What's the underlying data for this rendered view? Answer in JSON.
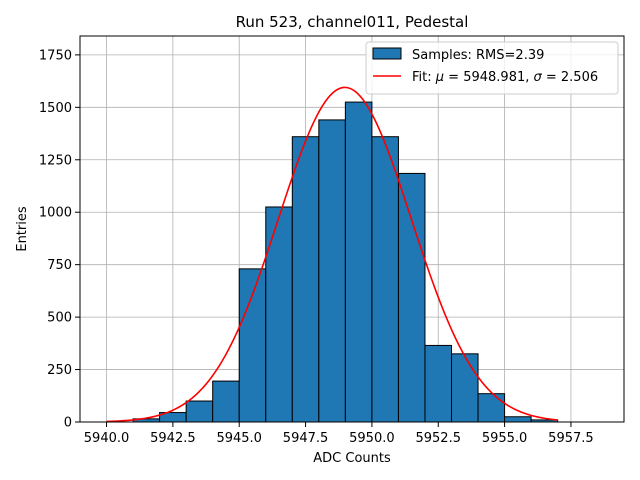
{
  "chart_data": {
    "type": "bar",
    "title": "Run 523, channel011, Pedestal",
    "xlabel": "ADC Counts",
    "ylabel": "Entries",
    "xlim": [
      5939.0,
      5959.5
    ],
    "ylim": [
      0,
      1840
    ],
    "xticks": [
      5940.0,
      5942.5,
      5945.0,
      5947.5,
      5950.0,
      5952.5,
      5955.0,
      5957.5
    ],
    "xtick_labels": [
      "5940.0",
      "5942.5",
      "5945.0",
      "5947.5",
      "5950.0",
      "5952.5",
      "5955.0",
      "5957.5"
    ],
    "yticks": [
      0,
      250,
      500,
      750,
      1000,
      1250,
      1500,
      1750
    ],
    "ytick_labels": [
      "0",
      "250",
      "500",
      "750",
      "1000",
      "1250",
      "1500",
      "1750"
    ],
    "grid": true,
    "legend_position": "top-right",
    "histogram": {
      "name": "Samples: RMS=2.39",
      "color": "#1f77b4",
      "edge_color": "#000000",
      "bin_edges": [
        5941,
        5942,
        5943,
        5944,
        5945,
        5946,
        5947,
        5948,
        5949,
        5950,
        5951,
        5952,
        5953,
        5954,
        5955,
        5956,
        5957
      ],
      "counts": [
        15,
        45,
        100,
        195,
        730,
        1025,
        1360,
        1440,
        1525,
        1360,
        1185,
        365,
        325,
        135,
        25,
        10
      ]
    },
    "fit": {
      "name": "Fit: μ = 5948.981, σ = 2.506",
      "name_parts": [
        "Fit: ",
        "μ",
        " = 5948.981, ",
        "σ",
        " = 2.506"
      ],
      "color": "#ff0000",
      "mu": 5948.981,
      "sigma": 2.506,
      "amplitude": 1595,
      "x_range": [
        5940.0,
        5957.0
      ]
    }
  }
}
